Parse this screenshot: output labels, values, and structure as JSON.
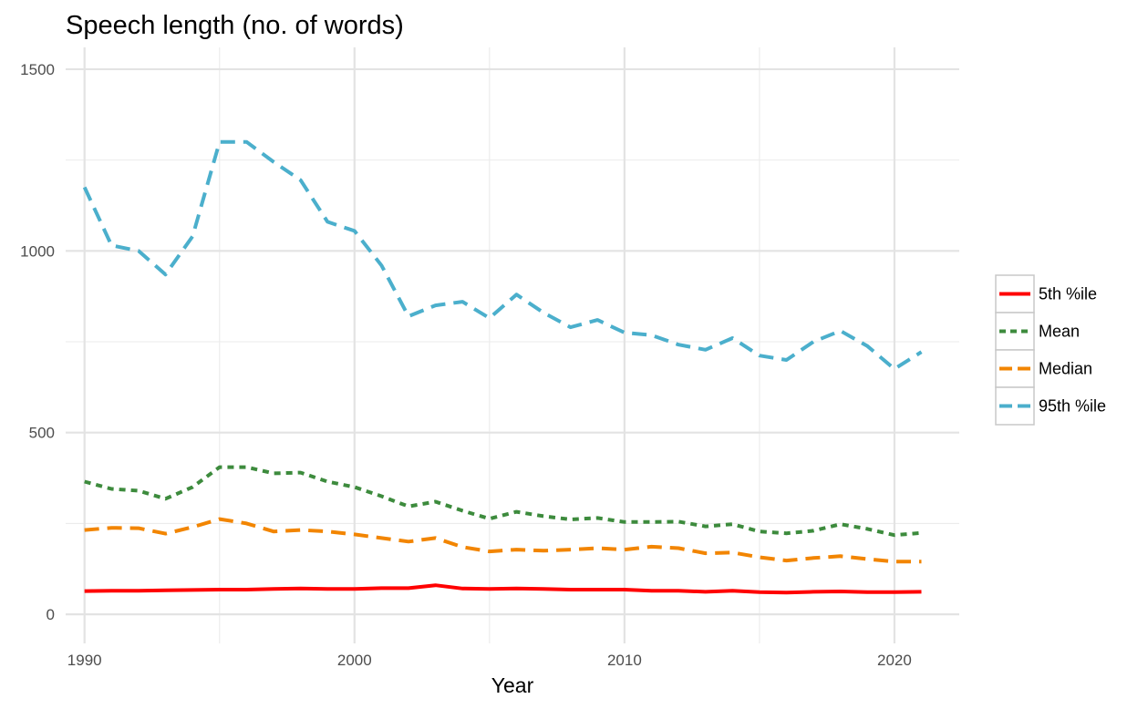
{
  "chart_data": {
    "type": "line",
    "title": "Speech length (no. of words)",
    "xlabel": "Year",
    "ylabel": "",
    "xlim": [
      1989.3,
      2022.4
    ],
    "ylim": [
      -80,
      1560
    ],
    "x_ticks": [
      1990,
      2000,
      2010,
      2020
    ],
    "y_ticks": [
      0,
      500,
      1000,
      1500
    ],
    "x_minor": [
      1995,
      2005,
      2015
    ],
    "y_minor": [
      250,
      750,
      1250
    ],
    "grid": true,
    "legend_position": "right",
    "x": [
      1990,
      1991,
      1992,
      1993,
      1994,
      1995,
      1996,
      1997,
      1998,
      1999,
      2000,
      2001,
      2002,
      2003,
      2004,
      2005,
      2006,
      2007,
      2008,
      2009,
      2010,
      2011,
      2012,
      2013,
      2014,
      2015,
      2016,
      2017,
      2018,
      2019,
      2020,
      2021
    ],
    "series": [
      {
        "name": "5th %ile",
        "color": "#ff0000",
        "dash": "solid",
        "values": [
          64,
          65,
          65,
          66,
          67,
          68,
          68,
          70,
          71,
          70,
          70,
          72,
          72,
          80,
          71,
          70,
          71,
          70,
          68,
          68,
          68,
          65,
          65,
          62,
          65,
          61,
          60,
          62,
          63,
          61,
          61,
          62
        ]
      },
      {
        "name": "Mean",
        "color": "#3d8b3d",
        "dash": "dotted",
        "values": [
          365,
          345,
          340,
          318,
          350,
          405,
          405,
          388,
          390,
          365,
          350,
          325,
          297,
          310,
          285,
          263,
          282,
          270,
          261,
          265,
          254,
          254,
          255,
          242,
          248,
          228,
          223,
          230,
          248,
          235,
          218,
          224
        ]
      },
      {
        "name": "Median",
        "color": "#f28500",
        "dash": "dashed",
        "values": [
          232,
          238,
          237,
          222,
          240,
          262,
          250,
          228,
          232,
          228,
          220,
          210,
          200,
          210,
          185,
          173,
          178,
          175,
          178,
          182,
          178,
          186,
          182,
          168,
          170,
          157,
          148,
          155,
          160,
          152,
          145,
          145
        ]
      },
      {
        "name": "95th %ile",
        "color": "#4bafcc",
        "dash": "dashed",
        "values": [
          1175,
          1015,
          1000,
          935,
          1040,
          1300,
          1300,
          1245,
          1195,
          1080,
          1055,
          960,
          820,
          850,
          860,
          815,
          880,
          830,
          790,
          810,
          775,
          768,
          742,
          728,
          760,
          712,
          700,
          750,
          780,
          738,
          675,
          722
        ]
      }
    ]
  }
}
